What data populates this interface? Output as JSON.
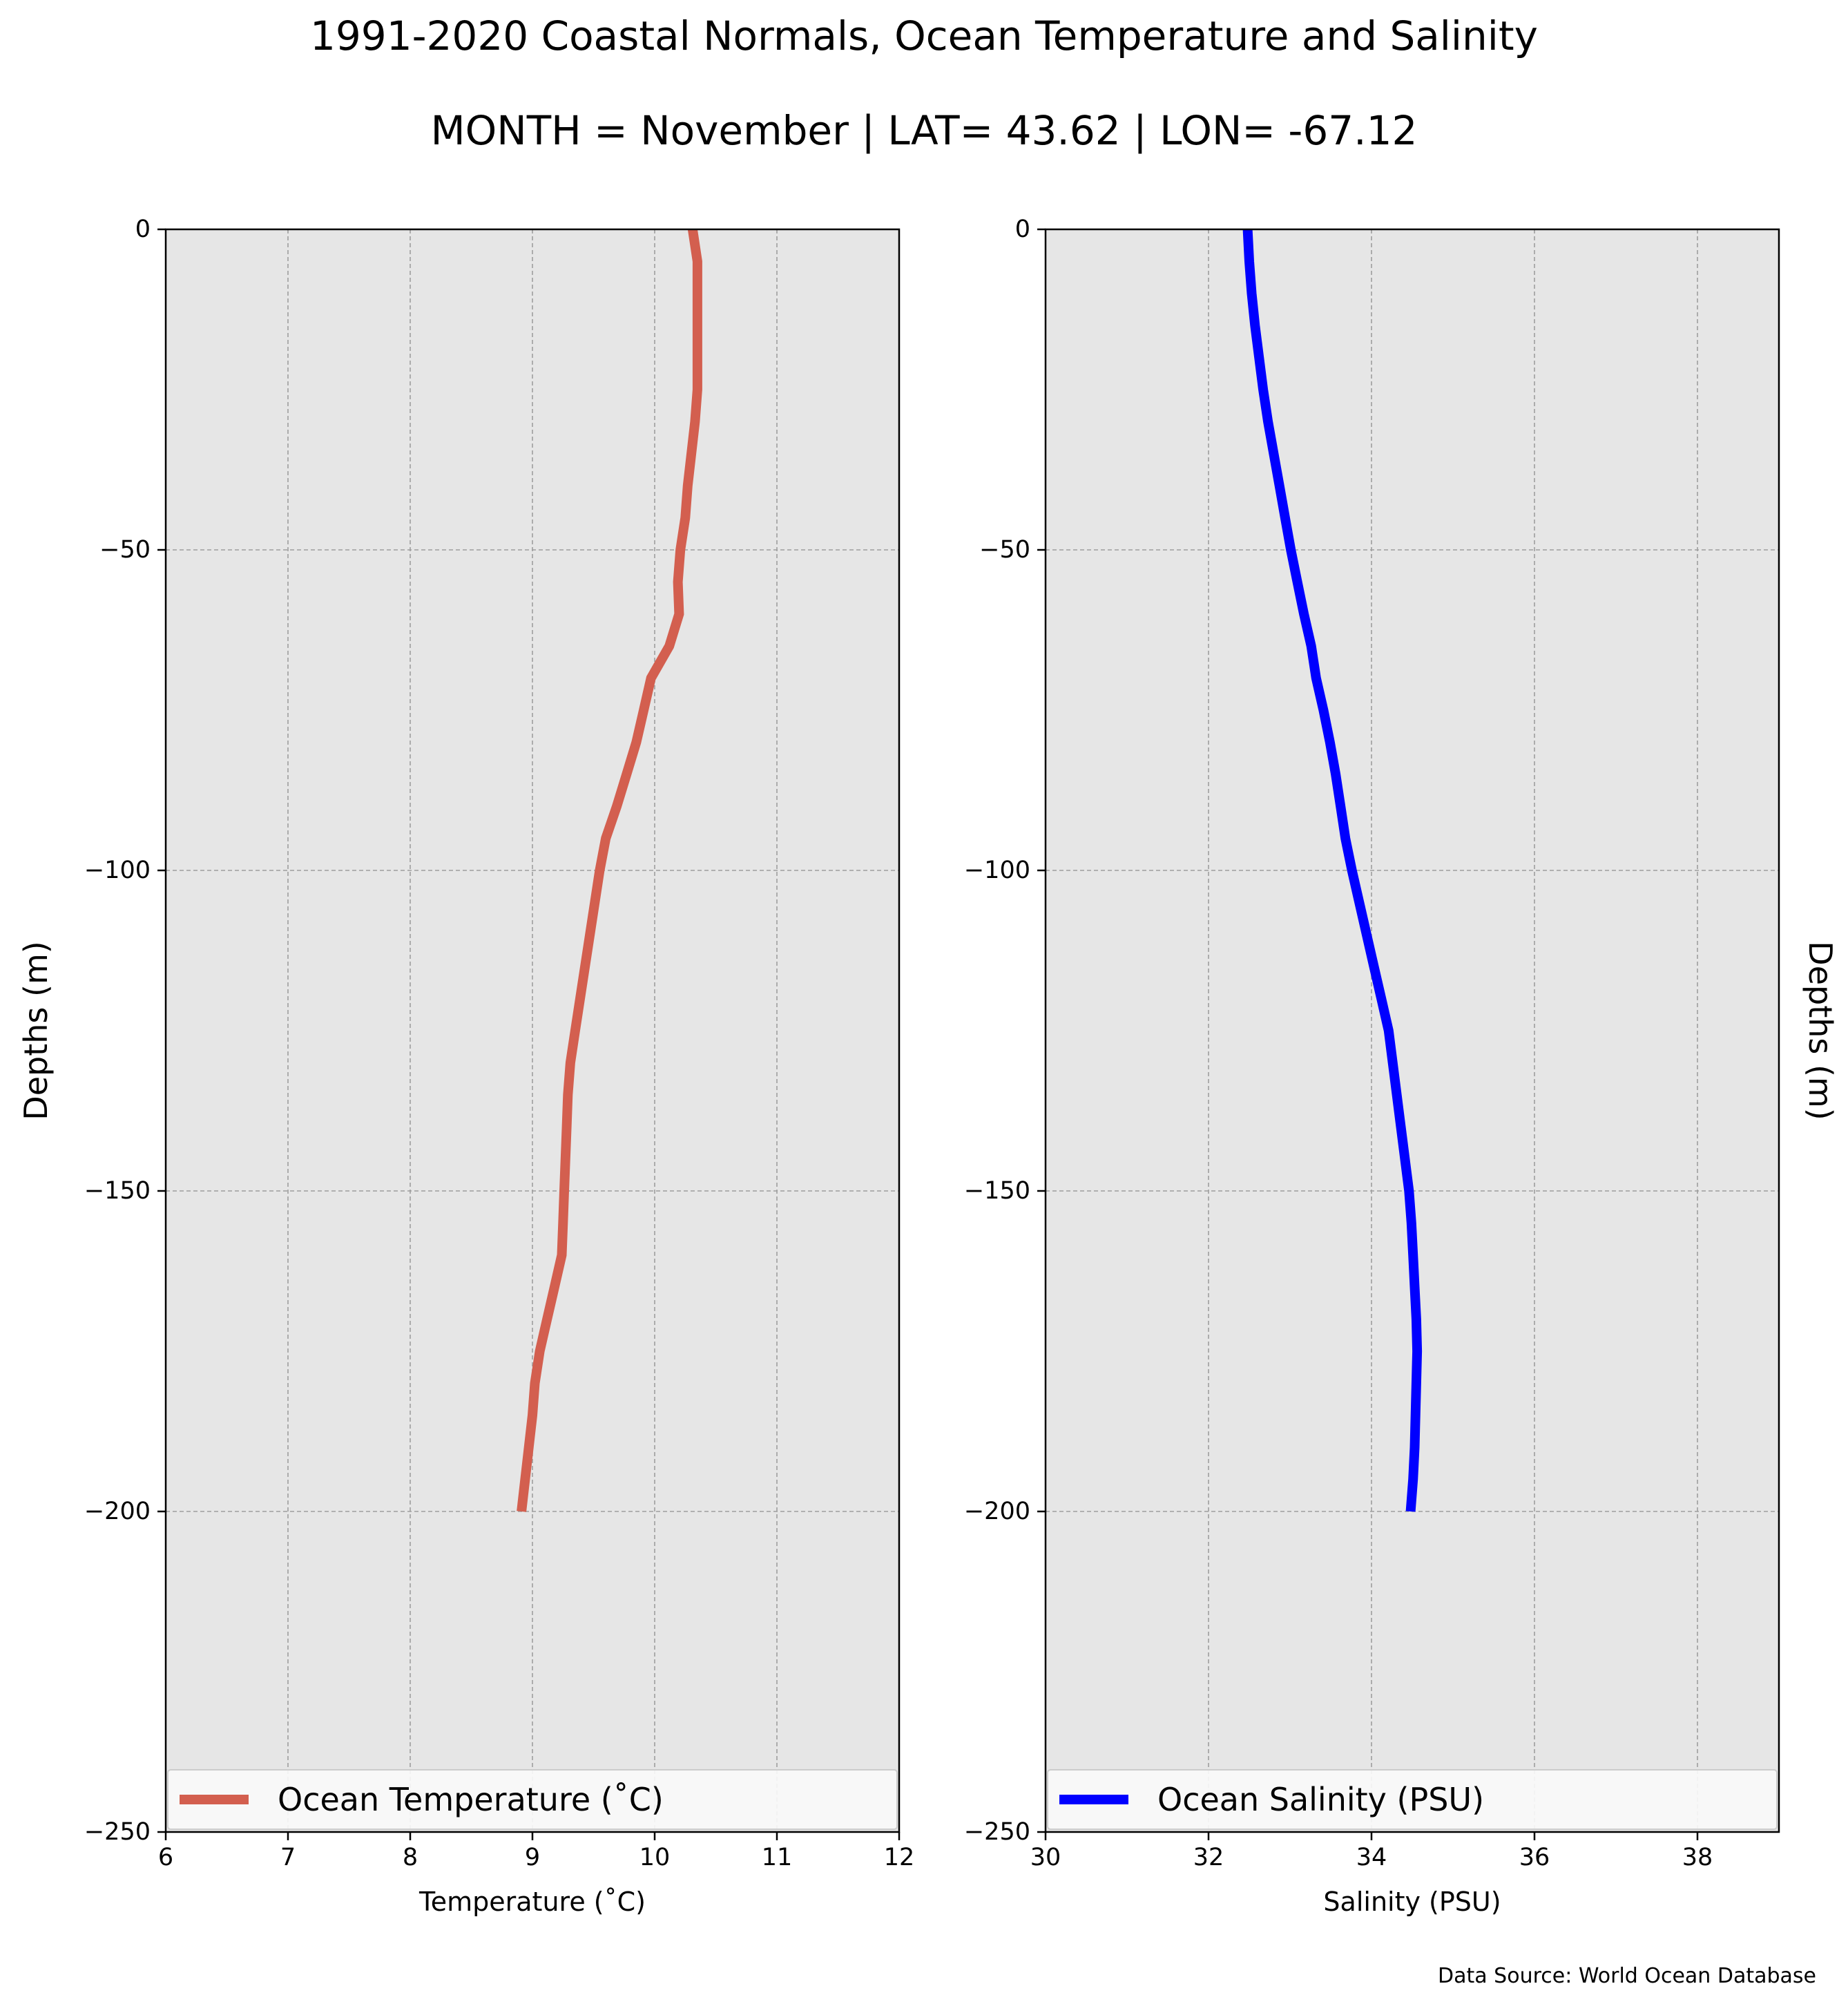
{
  "figure": {
    "title": "1991-2020 Coastal Normals, Ocean Temperature and Salinity",
    "subtitle": "MONTH = November | LAT= 43.62 | LON= -67.12",
    "source": "Data Source: World Ocean Database"
  },
  "chart_data": [
    {
      "type": "line",
      "xlabel": "Temperature (˚C)",
      "ylabel": "Depths (m)",
      "xlim": [
        6,
        12
      ],
      "ylim": [
        -250,
        0
      ],
      "xticks": [
        6,
        7,
        8,
        9,
        10,
        11,
        12
      ],
      "yticks": [
        0,
        -50,
        -100,
        -150,
        -200,
        -250
      ],
      "xtick_labels": [
        "6",
        "7",
        "8",
        "9",
        "10",
        "11",
        "12"
      ],
      "ytick_labels": [
        "0",
        "−50",
        "−100",
        "−150",
        "−200",
        "−250"
      ],
      "grid": true,
      "legend": "bottom",
      "series": [
        {
          "name": "Ocean Temperature (˚C)",
          "color": "#d35f4f",
          "x": [
            10.31,
            10.35,
            10.35,
            10.35,
            10.35,
            10.35,
            10.33,
            10.3,
            10.27,
            10.25,
            10.21,
            10.19,
            10.2,
            10.12,
            9.97,
            9.91,
            9.85,
            9.77,
            9.69,
            9.6,
            9.55,
            9.51,
            9.47,
            9.43,
            9.39,
            9.35,
            9.31,
            9.29,
            9.28,
            9.27,
            9.26,
            9.25,
            9.24,
            9.18,
            9.12,
            9.06,
            9.02,
            9.0,
            8.97,
            8.94,
            8.91
          ],
          "y": [
            0,
            -5,
            -10,
            -15,
            -20,
            -25,
            -30,
            -35,
            -40,
            -45,
            -50,
            -55,
            -60,
            -65,
            -70,
            -75,
            -80,
            -85,
            -90,
            -95,
            -100,
            -105,
            -110,
            -115,
            -120,
            -125,
            -130,
            -135,
            -140,
            -145,
            -150,
            -155,
            -160,
            -165,
            -170,
            -175,
            -180,
            -185,
            -190,
            -195,
            -200
          ]
        }
      ]
    },
    {
      "type": "line",
      "xlabel": "Salinity (PSU)",
      "ylabel": "Depths (m)",
      "xlim": [
        30,
        39
      ],
      "ylim": [
        -250,
        0
      ],
      "xticks": [
        30,
        32,
        34,
        36,
        38
      ],
      "yticks": [
        0,
        -50,
        -100,
        -150,
        -200,
        -250
      ],
      "xtick_labels": [
        "30",
        "32",
        "34",
        "36",
        "38"
      ],
      "ytick_labels": [
        "0",
        "−50",
        "−100",
        "−150",
        "−200",
        "−250"
      ],
      "grid": true,
      "legend": "bottom",
      "series": [
        {
          "name": "Ocean Salinity (PSU)",
          "color": "#0000ff",
          "x": [
            32.48,
            32.5,
            32.53,
            32.57,
            32.62,
            32.67,
            32.73,
            32.8,
            32.87,
            32.94,
            33.01,
            33.09,
            33.17,
            33.26,
            33.32,
            33.41,
            33.49,
            33.56,
            33.62,
            33.68,
            33.76,
            33.85,
            33.94,
            34.03,
            34.12,
            34.21,
            34.26,
            34.31,
            34.36,
            34.41,
            34.46,
            34.49,
            34.51,
            34.53,
            34.55,
            34.56,
            34.55,
            34.54,
            34.53,
            34.51,
            34.48
          ],
          "y": [
            0,
            -5,
            -10,
            -15,
            -20,
            -25,
            -30,
            -35,
            -40,
            -45,
            -50,
            -55,
            -60,
            -65,
            -70,
            -75,
            -80,
            -85,
            -90,
            -95,
            -100,
            -105,
            -110,
            -115,
            -120,
            -125,
            -130,
            -135,
            -140,
            -145,
            -150,
            -155,
            -160,
            -165,
            -170,
            -175,
            -180,
            -185,
            -190,
            -195,
            -200
          ]
        }
      ]
    }
  ]
}
